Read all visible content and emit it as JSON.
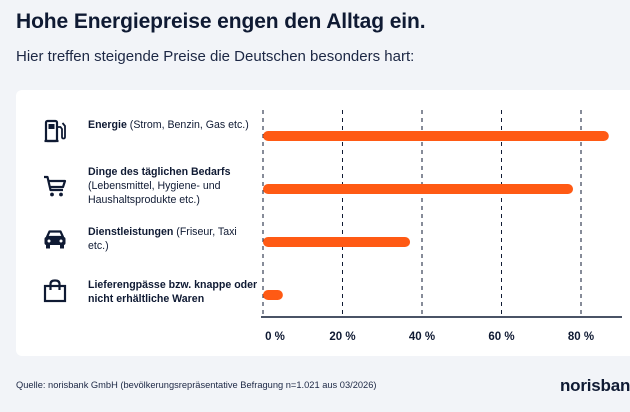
{
  "header": {
    "title": "Hohe Energiepreise engen den Alltag ein.",
    "subtitle": "Hier treffen steigende Preise die Deutschen besonders hart:"
  },
  "categories": [
    {
      "title": "Energie",
      "detail": " (Strom, Benzin, Gas etc.)",
      "icon": "fuel-pump-icon"
    },
    {
      "title": "Dinge des täglichen Bedarfs",
      "detail": " (Lebensmittel, Hygiene- und Haushaltsprodukte etc.)",
      "icon": "shopping-cart-icon"
    },
    {
      "title": "Dienstleistungen",
      "detail": " (Friseur, Taxi etc.)",
      "icon": "car-icon"
    },
    {
      "title": "Lieferengpässe bzw. knappe oder nicht erhältliche Waren",
      "detail": "",
      "icon": "shopping-bag-icon"
    }
  ],
  "chart_data": {
    "type": "bar",
    "orientation": "horizontal",
    "categories": [
      "Energie (Strom, Benzin, Gas etc.)",
      "Dinge des täglichen Bedarfs (Lebensmittel, Hygiene- und Haushaltsprodukte etc.)",
      "Dienstleistungen (Friseur, Taxi etc.)",
      "Lieferengpässe bzw. knappe oder nicht erhältliche Waren"
    ],
    "values": [
      87,
      78,
      37,
      5
    ],
    "xlim": [
      0,
      90
    ],
    "xticks": [
      0,
      20,
      40,
      60,
      80
    ],
    "xtick_labels": [
      "0 %",
      "20 %",
      "40 %",
      "60 %",
      "80 %"
    ],
    "grid": "vertical dashed",
    "bar_color": "#ff5a14"
  },
  "footer": {
    "source": "Quelle: norisbank GmbH (bevölkerungsrepräsentative Befragung n=1.021 aus 03/2026)",
    "logo_text": "norisbank"
  },
  "colors": {
    "bar": "#ff5a14",
    "text": "#0f1a33",
    "background": "#f2f4f8",
    "card": "#ffffff"
  }
}
